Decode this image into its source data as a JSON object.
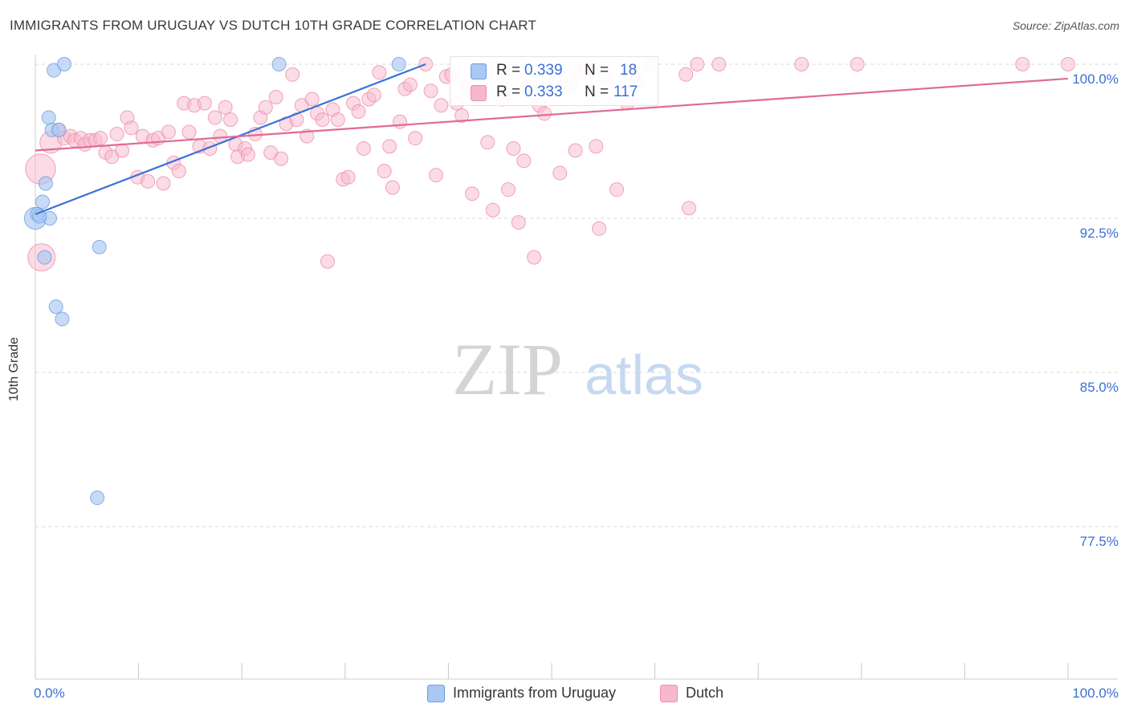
{
  "header": {
    "title": "IMMIGRANTS FROM URUGUAY VS DUTCH 10TH GRADE CORRELATION CHART",
    "source": "Source: ZipAtlas.com"
  },
  "watermark": {
    "zip": "ZIP",
    "atlas": "atlas"
  },
  "legend": {
    "rows": [
      {
        "r_label": "R =",
        "r_value": "0.339",
        "n_label": "N =",
        "n_value": "18",
        "color": "#a9c8f2"
      },
      {
        "r_label": "R =",
        "r_value": "0.333",
        "n_label": "N =",
        "n_value": "117",
        "color": "#f7b8cb"
      }
    ]
  },
  "bottom_legend": [
    {
      "label": "Immigrants from Uruguay",
      "color": "#a9c8f2"
    },
    {
      "label": "Dutch",
      "color": "#f7b8cb"
    }
  ],
  "colors": {
    "blue_fill": "#a9c8f2",
    "blue_stroke": "#6e9de0",
    "blue_line": "#3a72d6",
    "pink_fill": "#f7b8cb",
    "pink_stroke": "#ec8fab",
    "pink_line": "#e06a95",
    "axis_text": "#3b6fd6",
    "grid": "#d8d8d8"
  },
  "chart_data": {
    "type": "scatter",
    "title": "IMMIGRANTS FROM URUGUAY VS DUTCH 10TH GRADE CORRELATION CHART",
    "xlabel": "",
    "ylabel": "10th Grade",
    "xlim": [
      0,
      100
    ],
    "ylim": [
      70.0,
      101.5
    ],
    "x_tick_labels": [
      "0.0%",
      "100.0%"
    ],
    "y_ticks": [
      77.5,
      85.0,
      92.5,
      100.0
    ],
    "y_tick_labels": [
      "77.5%",
      "85.0%",
      "92.5%",
      "100.0%"
    ],
    "grid": true,
    "legend_position": "top-center",
    "series": [
      {
        "name": "Immigrants from Uruguay",
        "r": 0.339,
        "n": 18,
        "trend": {
          "x": [
            0.0,
            37.8
          ],
          "y": [
            92.7,
            100.0
          ]
        },
        "points": [
          {
            "x": 0.0,
            "y": 92.5,
            "s": 1.6
          },
          {
            "x": 0.2,
            "y": 92.7,
            "s": 1.0
          },
          {
            "x": 0.7,
            "y": 93.3,
            "s": 1.0
          },
          {
            "x": 1.0,
            "y": 94.2,
            "s": 1.0
          },
          {
            "x": 1.3,
            "y": 97.4,
            "s": 1.0
          },
          {
            "x": 1.6,
            "y": 96.8,
            "s": 1.0
          },
          {
            "x": 1.8,
            "y": 99.7,
            "s": 1.0
          },
          {
            "x": 2.0,
            "y": 88.2,
            "s": 1.0
          },
          {
            "x": 2.3,
            "y": 96.8,
            "s": 1.0
          },
          {
            "x": 2.6,
            "y": 87.6,
            "s": 1.0
          },
          {
            "x": 2.8,
            "y": 100.0,
            "s": 1.0
          },
          {
            "x": 0.9,
            "y": 90.6,
            "s": 1.0
          },
          {
            "x": 1.4,
            "y": 92.5,
            "s": 1.0
          },
          {
            "x": 6.2,
            "y": 91.1,
            "s": 1.0
          },
          {
            "x": 6.0,
            "y": 78.9,
            "s": 1.0
          },
          {
            "x": 23.6,
            "y": 100.0,
            "s": 1.0
          },
          {
            "x": 35.2,
            "y": 100.0,
            "s": 1.0
          },
          {
            "x": 0.4,
            "y": 92.6,
            "s": 1.0
          }
        ]
      },
      {
        "name": "Dutch",
        "r": 0.333,
        "n": 117,
        "trend": {
          "x": [
            0.0,
            100.0
          ],
          "y": [
            95.8,
            99.3
          ]
        },
        "points": [
          {
            "x": 0.5,
            "y": 94.9,
            "s": 2.2
          },
          {
            "x": 0.6,
            "y": 90.6,
            "s": 2.0
          },
          {
            "x": 1.5,
            "y": 96.2,
            "s": 1.6
          },
          {
            "x": 2.2,
            "y": 96.8,
            "s": 1.0
          },
          {
            "x": 2.8,
            "y": 96.4,
            "s": 1.0
          },
          {
            "x": 3.4,
            "y": 96.5,
            "s": 1.0
          },
          {
            "x": 3.8,
            "y": 96.3,
            "s": 1.0
          },
          {
            "x": 4.4,
            "y": 96.4,
            "s": 1.0
          },
          {
            "x": 4.8,
            "y": 96.1,
            "s": 1.0
          },
          {
            "x": 5.3,
            "y": 96.3,
            "s": 1.0
          },
          {
            "x": 5.8,
            "y": 96.3,
            "s": 1.0
          },
          {
            "x": 6.3,
            "y": 96.4,
            "s": 1.0
          },
          {
            "x": 6.8,
            "y": 95.7,
            "s": 1.0
          },
          {
            "x": 7.4,
            "y": 95.5,
            "s": 1.0
          },
          {
            "x": 7.9,
            "y": 96.6,
            "s": 1.0
          },
          {
            "x": 8.4,
            "y": 95.8,
            "s": 1.0
          },
          {
            "x": 8.9,
            "y": 97.4,
            "s": 1.0
          },
          {
            "x": 9.3,
            "y": 96.9,
            "s": 1.0
          },
          {
            "x": 9.9,
            "y": 94.5,
            "s": 1.0
          },
          {
            "x": 10.4,
            "y": 96.5,
            "s": 1.0
          },
          {
            "x": 10.9,
            "y": 94.3,
            "s": 1.0
          },
          {
            "x": 11.4,
            "y": 96.3,
            "s": 1.0
          },
          {
            "x": 11.9,
            "y": 96.4,
            "s": 1.0
          },
          {
            "x": 12.4,
            "y": 94.2,
            "s": 1.0
          },
          {
            "x": 12.9,
            "y": 96.7,
            "s": 1.0
          },
          {
            "x": 13.4,
            "y": 95.2,
            "s": 1.0
          },
          {
            "x": 13.9,
            "y": 94.8,
            "s": 1.0
          },
          {
            "x": 14.4,
            "y": 98.1,
            "s": 1.0
          },
          {
            "x": 14.9,
            "y": 96.7,
            "s": 1.0
          },
          {
            "x": 15.4,
            "y": 98.0,
            "s": 1.0
          },
          {
            "x": 15.9,
            "y": 96.0,
            "s": 1.0
          },
          {
            "x": 16.4,
            "y": 98.1,
            "s": 1.0
          },
          {
            "x": 16.9,
            "y": 95.9,
            "s": 1.0
          },
          {
            "x": 17.4,
            "y": 97.4,
            "s": 1.0
          },
          {
            "x": 17.9,
            "y": 96.5,
            "s": 1.0
          },
          {
            "x": 18.4,
            "y": 97.9,
            "s": 1.0
          },
          {
            "x": 18.9,
            "y": 97.3,
            "s": 1.0
          },
          {
            "x": 19.4,
            "y": 96.1,
            "s": 1.0
          },
          {
            "x": 19.6,
            "y": 95.5,
            "s": 1.0
          },
          {
            "x": 20.3,
            "y": 95.9,
            "s": 1.0
          },
          {
            "x": 20.6,
            "y": 95.6,
            "s": 1.0
          },
          {
            "x": 21.3,
            "y": 96.6,
            "s": 1.0
          },
          {
            "x": 21.8,
            "y": 97.4,
            "s": 1.0
          },
          {
            "x": 22.3,
            "y": 97.9,
            "s": 1.0
          },
          {
            "x": 22.8,
            "y": 95.7,
            "s": 1.0
          },
          {
            "x": 23.3,
            "y": 98.4,
            "s": 1.0
          },
          {
            "x": 23.8,
            "y": 95.4,
            "s": 1.0
          },
          {
            "x": 24.3,
            "y": 97.1,
            "s": 1.0
          },
          {
            "x": 24.9,
            "y": 99.5,
            "s": 1.0
          },
          {
            "x": 25.3,
            "y": 97.3,
            "s": 1.0
          },
          {
            "x": 25.8,
            "y": 98.0,
            "s": 1.0
          },
          {
            "x": 26.3,
            "y": 96.5,
            "s": 1.0
          },
          {
            "x": 26.8,
            "y": 98.3,
            "s": 1.0
          },
          {
            "x": 27.3,
            "y": 97.6,
            "s": 1.0
          },
          {
            "x": 27.8,
            "y": 97.3,
            "s": 1.0
          },
          {
            "x": 28.3,
            "y": 90.4,
            "s": 1.0
          },
          {
            "x": 28.8,
            "y": 97.8,
            "s": 1.0
          },
          {
            "x": 29.3,
            "y": 97.3,
            "s": 1.0
          },
          {
            "x": 29.8,
            "y": 94.4,
            "s": 1.0
          },
          {
            "x": 30.3,
            "y": 94.5,
            "s": 1.0
          },
          {
            "x": 30.8,
            "y": 98.1,
            "s": 1.0
          },
          {
            "x": 31.3,
            "y": 97.7,
            "s": 1.0
          },
          {
            "x": 31.8,
            "y": 95.9,
            "s": 1.0
          },
          {
            "x": 32.3,
            "y": 98.3,
            "s": 1.0
          },
          {
            "x": 32.8,
            "y": 98.5,
            "s": 1.0
          },
          {
            "x": 33.3,
            "y": 99.6,
            "s": 1.0
          },
          {
            "x": 33.8,
            "y": 94.8,
            "s": 1.0
          },
          {
            "x": 34.3,
            "y": 96.0,
            "s": 1.0
          },
          {
            "x": 34.6,
            "y": 94.0,
            "s": 1.0
          },
          {
            "x": 35.3,
            "y": 97.2,
            "s": 1.0
          },
          {
            "x": 35.8,
            "y": 98.8,
            "s": 1.0
          },
          {
            "x": 36.3,
            "y": 99.0,
            "s": 1.0
          },
          {
            "x": 36.8,
            "y": 96.4,
            "s": 1.0
          },
          {
            "x": 37.8,
            "y": 100.0,
            "s": 1.0
          },
          {
            "x": 38.3,
            "y": 98.7,
            "s": 1.0
          },
          {
            "x": 38.8,
            "y": 94.6,
            "s": 1.0
          },
          {
            "x": 39.3,
            "y": 98.0,
            "s": 1.0
          },
          {
            "x": 39.8,
            "y": 99.4,
            "s": 1.0
          },
          {
            "x": 40.3,
            "y": 99.5,
            "s": 1.0
          },
          {
            "x": 40.8,
            "y": 98.1,
            "s": 1.0
          },
          {
            "x": 41.3,
            "y": 97.5,
            "s": 1.0
          },
          {
            "x": 41.8,
            "y": 98.9,
            "s": 1.0
          },
          {
            "x": 42.3,
            "y": 93.7,
            "s": 1.0
          },
          {
            "x": 43.3,
            "y": 99.3,
            "s": 1.0
          },
          {
            "x": 43.8,
            "y": 96.2,
            "s": 1.0
          },
          {
            "x": 44.3,
            "y": 92.9,
            "s": 1.0
          },
          {
            "x": 45.3,
            "y": 98.3,
            "s": 1.0
          },
          {
            "x": 45.8,
            "y": 93.9,
            "s": 1.0
          },
          {
            "x": 46.3,
            "y": 95.9,
            "s": 1.0
          },
          {
            "x": 46.8,
            "y": 92.3,
            "s": 1.0
          },
          {
            "x": 47.3,
            "y": 95.3,
            "s": 1.0
          },
          {
            "x": 47.8,
            "y": 98.9,
            "s": 1.0
          },
          {
            "x": 48.3,
            "y": 90.6,
            "s": 1.0
          },
          {
            "x": 48.8,
            "y": 98.0,
            "s": 1.0
          },
          {
            "x": 49.3,
            "y": 97.6,
            "s": 1.0
          },
          {
            "x": 50.3,
            "y": 99.1,
            "s": 1.0
          },
          {
            "x": 50.8,
            "y": 94.7,
            "s": 1.0
          },
          {
            "x": 51.8,
            "y": 99.0,
            "s": 1.0
          },
          {
            "x": 52.3,
            "y": 95.8,
            "s": 1.0
          },
          {
            "x": 52.8,
            "y": 99.6,
            "s": 1.0
          },
          {
            "x": 53.3,
            "y": 99.8,
            "s": 1.0
          },
          {
            "x": 54.3,
            "y": 96.0,
            "s": 1.0
          },
          {
            "x": 54.6,
            "y": 92.0,
            "s": 1.0
          },
          {
            "x": 55.3,
            "y": 99.3,
            "s": 1.0
          },
          {
            "x": 56.3,
            "y": 93.9,
            "s": 1.0
          },
          {
            "x": 57.3,
            "y": 98.1,
            "s": 1.0
          },
          {
            "x": 58.3,
            "y": 99.2,
            "s": 1.0
          },
          {
            "x": 59.5,
            "y": 100.0,
            "s": 1.0
          },
          {
            "x": 63.0,
            "y": 99.5,
            "s": 1.0
          },
          {
            "x": 63.3,
            "y": 93.0,
            "s": 1.0
          },
          {
            "x": 64.1,
            "y": 100.0,
            "s": 1.0
          },
          {
            "x": 66.2,
            "y": 100.0,
            "s": 1.0
          },
          {
            "x": 74.2,
            "y": 100.0,
            "s": 1.0
          },
          {
            "x": 79.6,
            "y": 100.0,
            "s": 1.0
          },
          {
            "x": 95.6,
            "y": 100.0,
            "s": 1.0
          },
          {
            "x": 100.0,
            "y": 100.0,
            "s": 1.0
          }
        ]
      }
    ]
  }
}
